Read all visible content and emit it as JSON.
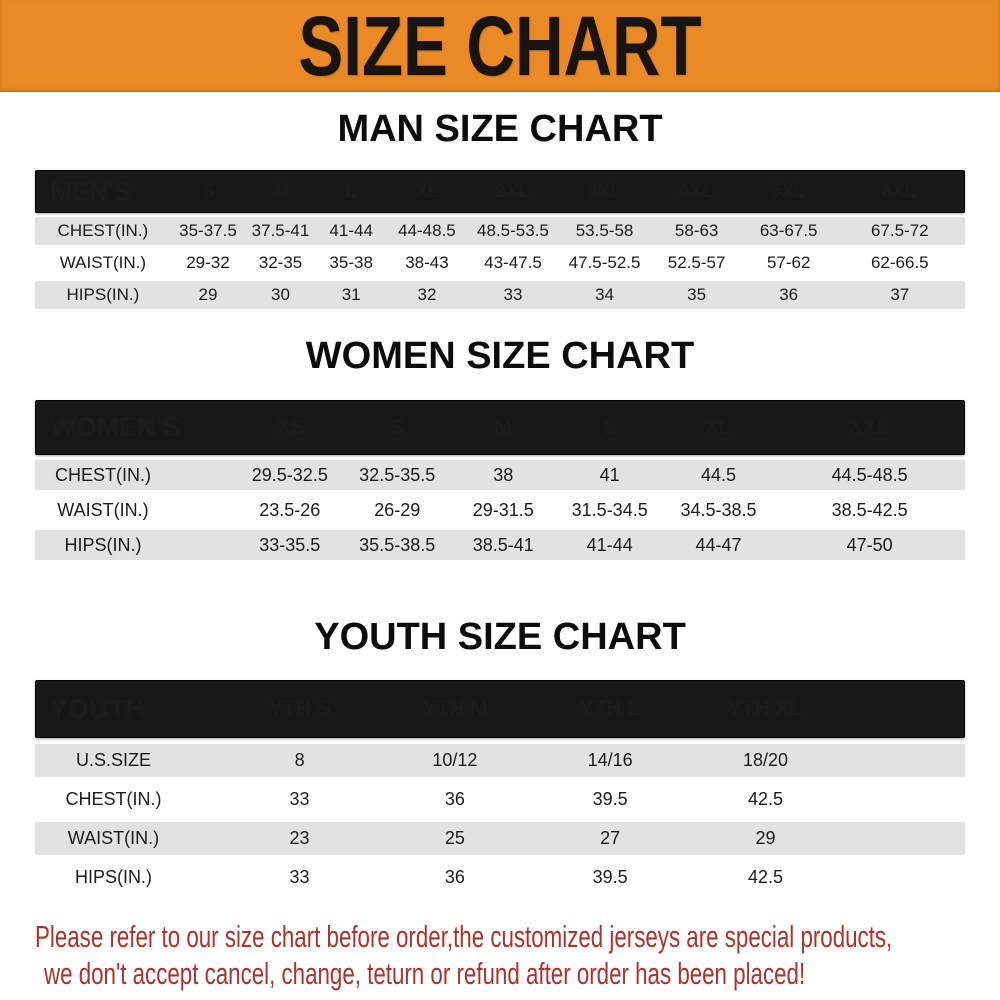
{
  "banner": {
    "title": "SIZE CHART",
    "bg_color": "#E98A26",
    "text_color": "#1A1410"
  },
  "colors": {
    "table_header_bg": "#181818",
    "table_header_text": "#FFFFFF",
    "row_stripe_gray": "#E2E2E2",
    "row_stripe_white": "#FFFFFF",
    "disclaimer_red": "#A9342D"
  },
  "sections": {
    "men": {
      "title": "MAN SIZE CHART",
      "header_label": "MEN'S",
      "columns": [
        "S",
        "M",
        "L",
        "XL",
        "2XL",
        "3XL",
        "4XL",
        "5XL",
        "6XL"
      ],
      "rows": [
        {
          "label": "CHEST(IN.)",
          "values": [
            "35-37.5",
            "37.5-41",
            "41-44",
            "44-48.5",
            "48.5-53.5",
            "53.5-58",
            "58-63",
            "63-67.5",
            "67.5-72"
          ]
        },
        {
          "label": "WAIST(IN.)",
          "values": [
            "29-32",
            "32-35",
            "35-38",
            "38-43",
            "43-47.5",
            "47.5-52.5",
            "52.5-57",
            "57-62",
            "62-66.5"
          ]
        },
        {
          "label": "HIPS(IN.)",
          "values": [
            "29",
            "30",
            "31",
            "32",
            "33",
            "34",
            "35",
            "36",
            "37"
          ]
        }
      ]
    },
    "women": {
      "title": "WOMEN SIZE CHART",
      "header_label": "WOMEN'S",
      "columns": [
        "XS",
        "S",
        "M",
        "L",
        "XL",
        "XXL"
      ],
      "rows": [
        {
          "label": "CHEST(IN.)",
          "values": [
            "29.5-32.5",
            "32.5-35.5",
            "38",
            "41",
            "44.5",
            "44.5-48.5"
          ]
        },
        {
          "label": "WAIST(IN.)",
          "values": [
            "23.5-26",
            "26-29",
            "29-31.5",
            "31.5-34.5",
            "34.5-38.5",
            "38.5-42.5"
          ]
        },
        {
          "label": "HIPS(IN.)",
          "values": [
            "33-35.5",
            "35.5-38.5",
            "38.5-41",
            "41-44",
            "44-47",
            "47-50"
          ]
        }
      ]
    },
    "youth": {
      "title": "YOUTH SIZE CHART",
      "header_label": "YOUTH",
      "columns": [
        "YTH S",
        "YTH M",
        "YTH L",
        "YTH XL"
      ],
      "rows": [
        {
          "label": "U.S.SIZE",
          "values": [
            "8",
            "10/12",
            "14/16",
            "18/20"
          ]
        },
        {
          "label": "CHEST(IN.)",
          "values": [
            "33",
            "36",
            "39.5",
            "42.5"
          ]
        },
        {
          "label": "WAIST(IN.)",
          "values": [
            "23",
            "25",
            "27",
            "29"
          ]
        },
        {
          "label": "HIPS(IN.)",
          "values": [
            "33",
            "36",
            "39.5",
            "42.5"
          ]
        }
      ]
    }
  },
  "disclaimer": {
    "line1": "Please refer to our size chart before order,the customized jerseys are special products,",
    "line2": "we don't accept cancel, change, teturn or refund after order has been placed!"
  }
}
